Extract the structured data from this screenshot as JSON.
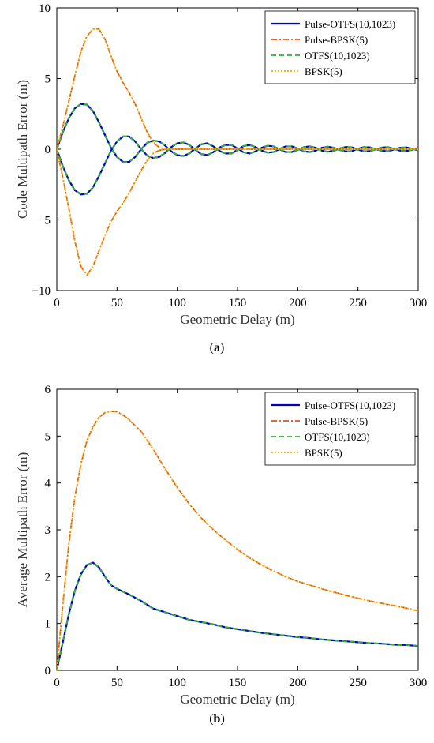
{
  "chart_data": [
    {
      "type": "line",
      "panel": "a",
      "caption_letter": "a",
      "xlabel": "Geometric Delay (m)",
      "ylabel": "Code Multipath Error (m)",
      "xlim": [
        0,
        300
      ],
      "ylim": [
        -10,
        10
      ],
      "xticks": [
        "0",
        "50",
        "100",
        "150",
        "200",
        "250",
        "300"
      ],
      "yticks": [
        "-10",
        "-5",
        "0",
        "5",
        "10"
      ],
      "legend_position": "top-right",
      "grid": false,
      "series": [
        {
          "name": "Pulse-OTFS(10,1023)",
          "color": "#0000cc",
          "dash": "solid",
          "width": 2.2,
          "x": [
            0,
            5,
            10,
            15,
            20,
            25,
            30,
            35,
            40,
            45,
            50,
            55,
            60,
            65,
            70,
            75,
            80,
            85,
            90,
            95,
            100,
            105,
            110,
            115,
            120,
            125,
            130,
            135,
            140,
            145,
            150,
            155,
            160,
            165,
            170,
            175,
            180,
            185,
            190,
            195,
            200,
            205,
            210,
            215,
            220,
            225,
            230,
            235,
            240,
            245,
            250,
            255,
            260,
            265,
            270,
            275,
            280,
            285,
            290,
            295,
            300
          ],
          "y_upper": [
            0,
            1.2,
            2.2,
            2.9,
            3.2,
            3.15,
            2.7,
            1.9,
            1.0,
            0.1,
            -0.55,
            -0.9,
            -0.9,
            -0.55,
            0.0,
            0.45,
            0.62,
            0.55,
            0.25,
            -0.15,
            -0.42,
            -0.48,
            -0.3,
            0.05,
            0.35,
            0.42,
            0.2,
            -0.12,
            -0.3,
            -0.3,
            -0.05,
            0.22,
            0.3,
            0.15,
            -0.1,
            -0.24,
            -0.2,
            0.02,
            0.2,
            0.2,
            0.05,
            -0.15,
            -0.2,
            -0.1,
            0.1,
            0.18,
            0.1,
            -0.06,
            -0.16,
            -0.13,
            0.03,
            0.15,
            0.13,
            0.0,
            -0.12,
            -0.14,
            -0.02,
            0.1,
            0.13,
            0.04,
            -0.08
          ],
          "y_lower": [
            0,
            -1.2,
            -2.2,
            -2.9,
            -3.2,
            -3.15,
            -2.7,
            -1.9,
            -1.0,
            -0.1,
            0.55,
            0.9,
            0.9,
            0.55,
            0.0,
            -0.45,
            -0.62,
            -0.55,
            -0.25,
            0.15,
            0.42,
            0.48,
            0.3,
            -0.05,
            -0.35,
            -0.42,
            -0.2,
            0.12,
            0.3,
            0.3,
            0.05,
            -0.22,
            -0.3,
            -0.15,
            0.1,
            0.24,
            0.2,
            -0.02,
            -0.2,
            -0.2,
            -0.05,
            0.15,
            0.2,
            0.1,
            -0.1,
            -0.18,
            -0.1,
            0.06,
            0.16,
            0.13,
            -0.03,
            -0.15,
            -0.13,
            0.0,
            0.12,
            0.14,
            0.02,
            -0.1,
            -0.13,
            -0.04,
            0.08
          ]
        },
        {
          "name": "Pulse-BPSK(5)",
          "color": "#e8521c",
          "dash": "7,3,2,3",
          "width": 1.8,
          "x": [
            0,
            5,
            10,
            15,
            20,
            25,
            30,
            35,
            40,
            45,
            50,
            55,
            60,
            65,
            70,
            75,
            80,
            85,
            90,
            95,
            100,
            110,
            120,
            300
          ],
          "y_upper": [
            0,
            1.6,
            3.4,
            5.2,
            6.9,
            8.0,
            8.5,
            8.5,
            7.8,
            6.6,
            5.5,
            4.7,
            4.0,
            3.2,
            2.2,
            1.2,
            0.5,
            0.12,
            0.02,
            0,
            0,
            0,
            0,
            0
          ],
          "y_lower": [
            0,
            -2.0,
            -4.2,
            -6.5,
            -8.3,
            -8.9,
            -8.3,
            -7.2,
            -6.1,
            -5.1,
            -4.4,
            -3.8,
            -3.1,
            -2.3,
            -1.5,
            -0.8,
            -0.3,
            -0.08,
            -0.01,
            0,
            0,
            0,
            0,
            0
          ]
        },
        {
          "name": "OTFS(10,1023)",
          "color": "#2db52d",
          "dash": "6,4",
          "width": 1.8,
          "same_as": 0
        },
        {
          "name": "BPSK(5)",
          "color": "#f0a800",
          "dash": "2,2",
          "width": 1.8,
          "same_as": 1
        }
      ]
    },
    {
      "type": "line",
      "panel": "b",
      "caption_letter": "b",
      "xlabel": "Geometric Delay (m)",
      "ylabel": "Average Multipath Error (m)",
      "xlim": [
        0,
        300
      ],
      "ylim": [
        0,
        6
      ],
      "xticks": [
        "0",
        "50",
        "100",
        "150",
        "200",
        "250",
        "300"
      ],
      "yticks": [
        "0",
        "1",
        "2",
        "3",
        "4",
        "5",
        "6"
      ],
      "legend_position": "top-right",
      "grid": false,
      "series": [
        {
          "name": "Pulse-OTFS(10,1023)",
          "color": "#0000cc",
          "dash": "solid",
          "width": 2.2,
          "x": [
            0,
            5,
            10,
            15,
            20,
            25,
            30,
            35,
            40,
            45,
            50,
            60,
            70,
            80,
            90,
            100,
            110,
            120,
            130,
            140,
            150,
            160,
            170,
            180,
            190,
            200,
            210,
            220,
            230,
            240,
            250,
            260,
            270,
            280,
            290,
            300
          ],
          "y": [
            0,
            0.6,
            1.2,
            1.7,
            2.05,
            2.25,
            2.3,
            2.2,
            2.0,
            1.82,
            1.74,
            1.62,
            1.48,
            1.32,
            1.24,
            1.16,
            1.08,
            1.03,
            0.98,
            0.92,
            0.88,
            0.84,
            0.8,
            0.77,
            0.74,
            0.71,
            0.69,
            0.66,
            0.64,
            0.62,
            0.6,
            0.58,
            0.57,
            0.55,
            0.54,
            0.52
          ]
        },
        {
          "name": "Pulse-BPSK(5)",
          "color": "#e8521c",
          "dash": "7,3,2,3",
          "width": 1.8,
          "x": [
            0,
            5,
            10,
            15,
            20,
            25,
            30,
            35,
            40,
            45,
            50,
            55,
            60,
            70,
            80,
            90,
            100,
            110,
            120,
            130,
            140,
            150,
            160,
            170,
            180,
            190,
            200,
            210,
            220,
            230,
            240,
            250,
            260,
            270,
            280,
            290,
            300
          ],
          "y": [
            0,
            1.4,
            2.7,
            3.7,
            4.4,
            4.9,
            5.2,
            5.4,
            5.5,
            5.53,
            5.52,
            5.45,
            5.35,
            5.1,
            4.72,
            4.3,
            3.9,
            3.55,
            3.25,
            3.0,
            2.78,
            2.58,
            2.4,
            2.25,
            2.12,
            2.0,
            1.9,
            1.82,
            1.74,
            1.67,
            1.6,
            1.54,
            1.48,
            1.43,
            1.38,
            1.33,
            1.27
          ]
        },
        {
          "name": "OTFS(10,1023)",
          "color": "#2db52d",
          "dash": "6,4",
          "width": 1.8,
          "same_as": 0
        },
        {
          "name": "BPSK(5)",
          "color": "#f0a800",
          "dash": "2,2",
          "width": 1.8,
          "same_as": 1
        }
      ]
    }
  ]
}
